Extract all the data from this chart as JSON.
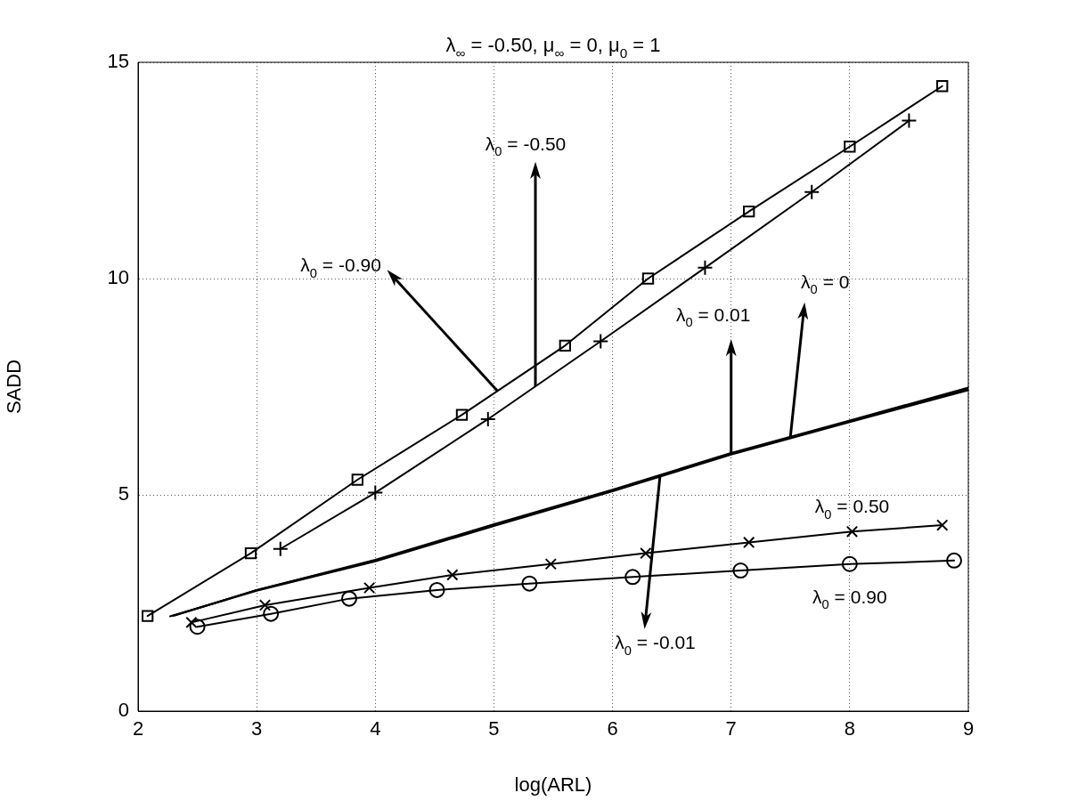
{
  "chart_data": {
    "type": "line",
    "title": "λ$_{∞}$ = -0.50, μ$_{∞}$ = 0, μ$_{0}$ = 1",
    "xlabel": "log(ARL)",
    "ylabel": "SADD",
    "xlim": [
      2,
      9
    ],
    "ylim": [
      0,
      15
    ],
    "xticks": [
      2,
      3,
      4,
      5,
      6,
      7,
      8,
      9
    ],
    "yticks": [
      0,
      5,
      10,
      15
    ],
    "grid": true,
    "legend": false,
    "series": [
      {
        "color": "#000000",
        "marker": "square",
        "line_style": "solid",
        "x": [
          2.08,
          2.95,
          3.85,
          4.73,
          5.6,
          6.3,
          7.15,
          8.0,
          8.78
        ],
        "values": [
          2.2,
          3.65,
          5.35,
          6.85,
          8.45,
          10.0,
          11.55,
          13.05,
          14.45
        ]
      },
      {
        "color": "#000000",
        "marker": "cross",
        "line_style": "solid",
        "x": [
          3.2,
          4.0,
          4.95,
          5.9,
          6.78,
          7.68,
          8.5
        ],
        "values": [
          3.75,
          5.05,
          6.75,
          8.55,
          10.25,
          12.0,
          13.65
        ]
      },
      {
        "color": "#000000",
        "marker": "none",
        "line_style": "solid",
        "x": [
          2.29,
          3.0,
          4.0,
          5.0,
          6.0,
          7.0,
          8.0,
          9.0
        ],
        "values": [
          2.2,
          2.8,
          3.48,
          4.3,
          5.1,
          5.95,
          6.7,
          7.45
        ]
      },
      {
        "color": "#000000",
        "marker": "none",
        "line_style": "solid",
        "x": [
          2.31,
          3.0,
          4.0,
          5.0,
          6.0,
          7.0,
          8.0,
          9.0
        ],
        "values": [
          2.21,
          2.8,
          3.5,
          4.32,
          5.12,
          5.97,
          6.72,
          7.48
        ]
      },
      {
        "color": "#000000",
        "marker": "none",
        "line_style": "solid",
        "x": [
          2.27,
          3.0,
          4.0,
          5.0,
          6.0,
          7.0,
          8.0,
          9.0
        ],
        "values": [
          2.19,
          2.78,
          3.46,
          4.28,
          5.08,
          5.93,
          6.68,
          7.42
        ]
      },
      {
        "color": "#000000",
        "marker": "x",
        "line_style": "solid",
        "x": [
          2.45,
          3.07,
          3.95,
          4.65,
          5.48,
          6.28,
          7.15,
          8.02,
          8.78
        ],
        "values": [
          2.05,
          2.45,
          2.85,
          3.15,
          3.4,
          3.65,
          3.9,
          4.15,
          4.3
        ]
      },
      {
        "color": "#000000",
        "marker": "circle",
        "line_style": "solid",
        "x": [
          2.5,
          3.12,
          3.78,
          4.52,
          5.3,
          6.17,
          7.08,
          8.0,
          8.88
        ],
        "values": [
          1.95,
          2.25,
          2.6,
          2.8,
          2.95,
          3.1,
          3.25,
          3.4,
          3.48
        ]
      }
    ],
    "annotations": [
      {
        "text": "λ$_{0}$ = -0.90",
        "x": 5.03,
        "y": 7.4
      },
      {
        "text": "λ$_{0}$ = -0.50",
        "x": 5.35,
        "y": 7.51
      },
      {
        "text": "λ$_{0}$ = 0.01",
        "x": 7.0,
        "y": 5.95
      },
      {
        "text": "λ$_{0}$ = 0",
        "x": 7.5,
        "y": 6.35
      },
      {
        "text": "λ$_{0}$ = -0.01",
        "x": 6.4,
        "y": 5.42
      },
      {
        "text": "λ$_{0}$ = 0.50",
        "x": 8.02,
        "y": 4.15
      },
      {
        "text": "λ$_{0}$ = 0.90",
        "x": 8.0,
        "y": 3.4
      }
    ]
  }
}
